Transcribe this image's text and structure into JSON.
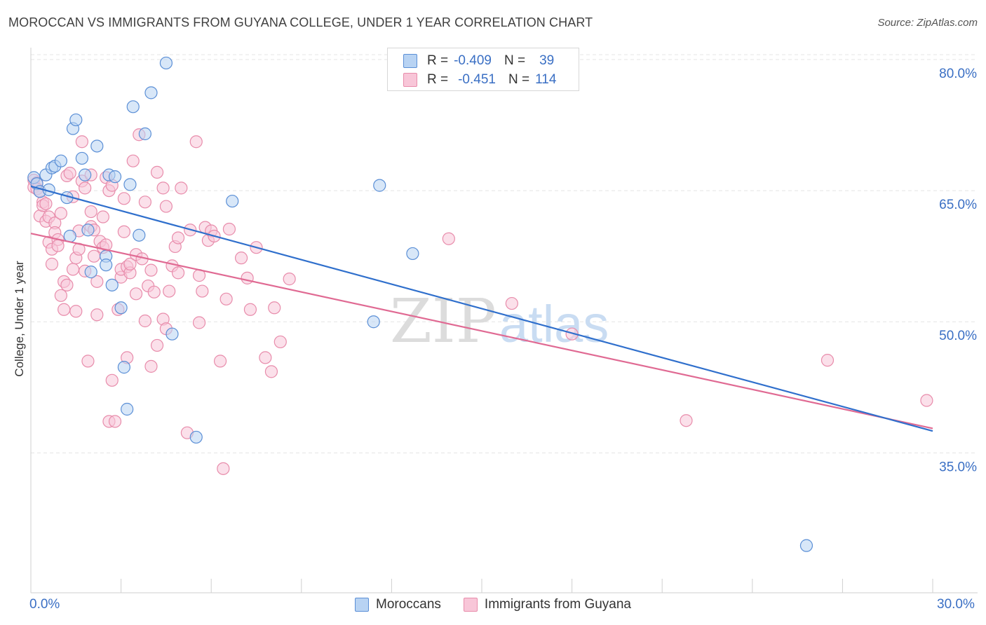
{
  "title": "MOROCCAN VS IMMIGRANTS FROM GUYANA COLLEGE, UNDER 1 YEAR CORRELATION CHART",
  "source": "Source: ZipAtlas.com",
  "watermark": {
    "zip": "ZIP",
    "atlas": "atlas"
  },
  "colors": {
    "blue_fill": "#b8d3f3",
    "blue_stroke": "#5b8fd6",
    "blue_line": "#2f6fcc",
    "pink_fill": "#f8c6d8",
    "pink_stroke": "#e88cab",
    "pink_line": "#e06a93",
    "axis_text": "#3a6fc4",
    "grid": "#e4e4e4"
  },
  "legend": {
    "rows": [
      {
        "r_label": "R =",
        "r_value": "-0.409",
        "n_label": "N =",
        "n_value": "39"
      },
      {
        "r_label": "R =",
        "r_value": "-0.451",
        "n_label": "N =",
        "n_value": "114"
      }
    ]
  },
  "bottom_legend": [
    "Moroccans",
    "Immigrants from Guyana"
  ],
  "chart_data": {
    "type": "scatter",
    "title": "MOROCCAN VS IMMIGRANTS FROM GUYANA COLLEGE, UNDER 1 YEAR CORRELATION CHART",
    "xlabel": "",
    "ylabel": "College, Under 1 year",
    "xlim": [
      0,
      30
    ],
    "ylim": [
      19,
      82
    ],
    "x_tick_labels": [
      "0.0%",
      "30.0%"
    ],
    "y_ticks": [
      35,
      50,
      65,
      80
    ],
    "y_tick_labels": [
      "35.0%",
      "50.0%",
      "65.0%",
      "80.0%"
    ],
    "grid": true,
    "legend_position": "top-center",
    "series": [
      {
        "name": "Moroccans",
        "r": -0.409,
        "n": 39,
        "trend": {
          "x": [
            0,
            30
          ],
          "y": [
            65.5,
            37.5
          ]
        },
        "points": [
          [
            0.1,
            66.5
          ],
          [
            0.2,
            65.8
          ],
          [
            0.3,
            64.9
          ],
          [
            0.5,
            66.8
          ],
          [
            0.6,
            65.1
          ],
          [
            0.7,
            67.6
          ],
          [
            0.8,
            67.8
          ],
          [
            1.0,
            68.4
          ],
          [
            1.2,
            64.2
          ],
          [
            1.3,
            59.8
          ],
          [
            1.4,
            72.1
          ],
          [
            1.5,
            73.1
          ],
          [
            1.7,
            68.7
          ],
          [
            1.8,
            66.8
          ],
          [
            1.9,
            60.5
          ],
          [
            2.0,
            55.7
          ],
          [
            2.2,
            70.1
          ],
          [
            2.5,
            57.5
          ],
          [
            2.6,
            66.8
          ],
          [
            2.5,
            56.5
          ],
          [
            2.7,
            54.2
          ],
          [
            2.8,
            66.6
          ],
          [
            3.0,
            51.6
          ],
          [
            3.1,
            44.8
          ],
          [
            3.2,
            40.0
          ],
          [
            3.3,
            65.7
          ],
          [
            3.4,
            74.6
          ],
          [
            3.6,
            59.9
          ],
          [
            3.8,
            71.5
          ],
          [
            4.0,
            76.2
          ],
          [
            4.5,
            79.6
          ],
          [
            4.7,
            48.6
          ],
          [
            5.5,
            36.8
          ],
          [
            6.7,
            63.8
          ],
          [
            11.4,
            50.0
          ],
          [
            11.6,
            65.6
          ],
          [
            12.7,
            57.8
          ],
          [
            15.8,
            78.4
          ],
          [
            25.8,
            24.4
          ]
        ]
      },
      {
        "name": "Immigrants from Guyana",
        "r": -0.451,
        "n": 114,
        "trend": {
          "x": [
            0,
            30
          ],
          "y": [
            60.1,
            37.8
          ]
        },
        "points": [
          [
            0.1,
            66.2
          ],
          [
            0.1,
            65.4
          ],
          [
            0.2,
            65.9
          ],
          [
            0.2,
            65.2
          ],
          [
            0.3,
            64.9
          ],
          [
            0.3,
            62.1
          ],
          [
            0.4,
            63.7
          ],
          [
            0.4,
            63.3
          ],
          [
            0.5,
            63.5
          ],
          [
            0.5,
            61.5
          ],
          [
            0.6,
            62.0
          ],
          [
            0.6,
            59.1
          ],
          [
            0.7,
            58.3
          ],
          [
            0.7,
            56.6
          ],
          [
            0.8,
            61.3
          ],
          [
            0.8,
            60.2
          ],
          [
            0.9,
            59.4
          ],
          [
            0.9,
            58.7
          ],
          [
            1.0,
            62.4
          ],
          [
            1.0,
            53.0
          ],
          [
            1.1,
            54.6
          ],
          [
            1.1,
            51.4
          ],
          [
            1.2,
            54.2
          ],
          [
            1.2,
            66.7
          ],
          [
            1.3,
            67.0
          ],
          [
            1.4,
            64.3
          ],
          [
            1.4,
            56.0
          ],
          [
            1.5,
            51.2
          ],
          [
            1.5,
            57.3
          ],
          [
            1.6,
            60.4
          ],
          [
            1.6,
            58.3
          ],
          [
            1.7,
            70.6
          ],
          [
            1.7,
            66.1
          ],
          [
            1.8,
            65.3
          ],
          [
            1.8,
            55.8
          ],
          [
            1.9,
            45.5
          ],
          [
            2.0,
            60.9
          ],
          [
            2.0,
            66.8
          ],
          [
            2.0,
            62.6
          ],
          [
            2.1,
            60.5
          ],
          [
            2.1,
            57.5
          ],
          [
            2.2,
            54.6
          ],
          [
            2.2,
            50.8
          ],
          [
            2.3,
            59.2
          ],
          [
            2.4,
            58.5
          ],
          [
            2.4,
            62.0
          ],
          [
            2.5,
            66.5
          ],
          [
            2.5,
            58.8
          ],
          [
            2.6,
            65.0
          ],
          [
            2.6,
            38.6
          ],
          [
            2.7,
            43.3
          ],
          [
            2.7,
            65.6
          ],
          [
            2.8,
            38.6
          ],
          [
            2.9,
            51.4
          ],
          [
            3.0,
            55.1
          ],
          [
            3.0,
            56.0
          ],
          [
            3.1,
            60.3
          ],
          [
            3.1,
            64.1
          ],
          [
            3.2,
            56.3
          ],
          [
            3.2,
            45.9
          ],
          [
            3.3,
            55.6
          ],
          [
            3.3,
            56.6
          ],
          [
            3.4,
            68.4
          ],
          [
            3.5,
            57.7
          ],
          [
            3.5,
            53.2
          ],
          [
            3.6,
            71.4
          ],
          [
            3.7,
            57.2
          ],
          [
            3.8,
            50.1
          ],
          [
            3.8,
            63.7
          ],
          [
            3.9,
            54.1
          ],
          [
            4.0,
            55.9
          ],
          [
            4.0,
            44.9
          ],
          [
            4.1,
            53.4
          ],
          [
            4.2,
            47.3
          ],
          [
            4.2,
            67.1
          ],
          [
            4.4,
            65.3
          ],
          [
            4.4,
            50.3
          ],
          [
            4.5,
            63.2
          ],
          [
            4.5,
            49.2
          ],
          [
            4.6,
            53.5
          ],
          [
            4.7,
            56.4
          ],
          [
            4.8,
            58.6
          ],
          [
            4.9,
            55.6
          ],
          [
            4.9,
            59.6
          ],
          [
            5.0,
            65.3
          ],
          [
            5.2,
            37.3
          ],
          [
            5.3,
            60.5
          ],
          [
            5.5,
            70.6
          ],
          [
            5.6,
            55.3
          ],
          [
            5.6,
            49.9
          ],
          [
            5.7,
            53.5
          ],
          [
            5.8,
            60.8
          ],
          [
            5.9,
            59.3
          ],
          [
            6.0,
            60.4
          ],
          [
            6.1,
            59.8
          ],
          [
            6.3,
            45.5
          ],
          [
            6.4,
            33.2
          ],
          [
            6.5,
            52.6
          ],
          [
            6.6,
            60.6
          ],
          [
            7.0,
            57.3
          ],
          [
            7.2,
            55.0
          ],
          [
            7.3,
            51.4
          ],
          [
            7.5,
            58.5
          ],
          [
            7.8,
            45.9
          ],
          [
            8.0,
            44.3
          ],
          [
            8.1,
            51.6
          ],
          [
            8.3,
            47.7
          ],
          [
            8.6,
            54.9
          ],
          [
            13.9,
            59.5
          ],
          [
            16.0,
            52.1
          ],
          [
            18.0,
            48.6
          ],
          [
            21.8,
            38.7
          ],
          [
            26.5,
            45.6
          ],
          [
            29.8,
            41.0
          ]
        ]
      }
    ]
  }
}
